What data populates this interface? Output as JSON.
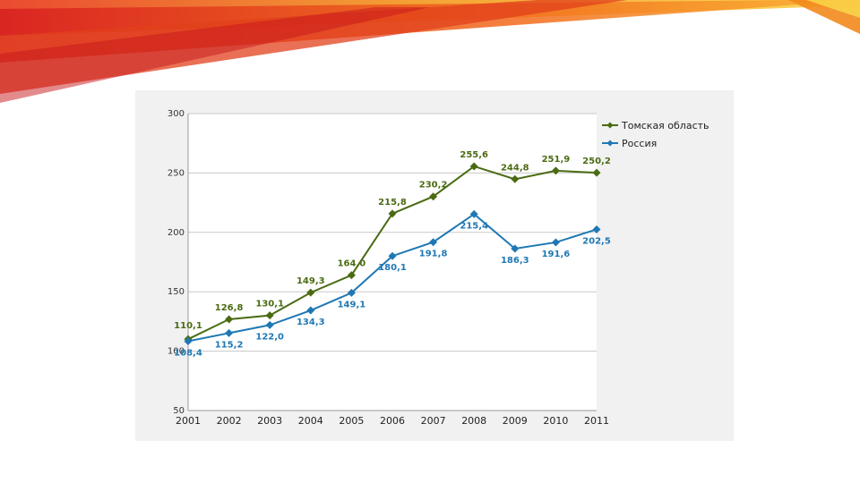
{
  "colors": {
    "tomsk": "#4a6b12",
    "russia": "#1f78b4",
    "grid": "#c8c8c8",
    "plot_bg": "#ffffff",
    "panel_bg": "#f1f1f1"
  },
  "chart_data": {
    "type": "line",
    "title": "",
    "xlabel": "",
    "ylabel": "",
    "x": [
      "2001",
      "2002",
      "2003",
      "2004",
      "2005",
      "2006",
      "2007",
      "2008",
      "2009",
      "2010",
      "2011"
    ],
    "ylim": [
      50,
      300
    ],
    "yticks": [
      50,
      100,
      150,
      200,
      250,
      300
    ],
    "grid": true,
    "legend_position": "right",
    "series": [
      {
        "name": "Томская область",
        "color": "#4a6b12",
        "values": [
          110.1,
          126.8,
          130.1,
          149.3,
          164.0,
          215.8,
          230.2,
          255.6,
          244.8,
          251.9,
          250.2
        ],
        "labels": [
          "110,1",
          "126,8",
          "130,1",
          "149,3",
          "164,0",
          "215,8",
          "230,2",
          "255,6",
          "244,8",
          "251,9",
          "250,2"
        ]
      },
      {
        "name": "Россия",
        "color": "#1f78b4",
        "values": [
          108.4,
          115.2,
          122.0,
          134.3,
          149.1,
          180.1,
          191.8,
          215.4,
          186.3,
          191.6,
          202.5
        ],
        "labels": [
          "108,4",
          "115,2",
          "122,0",
          "134,3",
          "149,1",
          "180,1",
          "191,8",
          "215,4",
          "186,3",
          "191,6",
          "202,5"
        ]
      }
    ]
  }
}
